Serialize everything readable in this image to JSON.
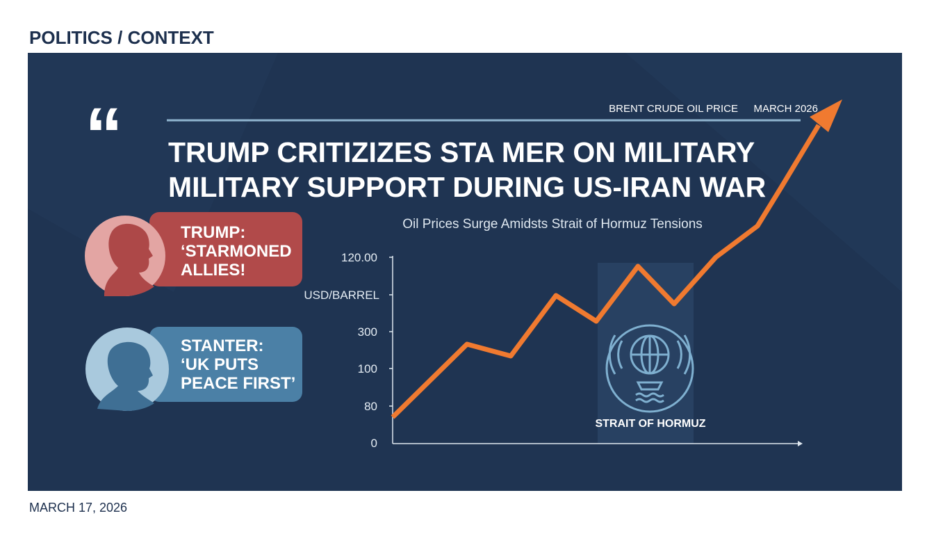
{
  "header": {
    "section": "POLITICS / CONTEXT"
  },
  "graphic": {
    "label": "BRENT CRUDE OIL PRICE",
    "label_date": "MARCH 2026",
    "headline": [
      "TRUMP CRITIZIZES STA MER ON MILITARY",
      "MILITARY SUPPORT DURING US-IRAN WAR"
    ],
    "quotes": [
      {
        "lines": [
          "TRUMP:",
          "‘STARMONED",
          "ALLIES!"
        ]
      },
      {
        "lines": [
          "STANTER:",
          "‘UK PUTS",
          "PEACE FIRST’"
        ]
      }
    ],
    "chart_subtitle": "Oil Prices Surge Amidsts Strait of Hormuz Tensions",
    "axis_labels": [
      "120.00",
      "USD/BARREL",
      "300",
      "100",
      "80",
      "0"
    ],
    "region_label": "STRAIT OF HORMUZ"
  },
  "footer": {
    "date": "MARCH 17, 2026"
  }
}
